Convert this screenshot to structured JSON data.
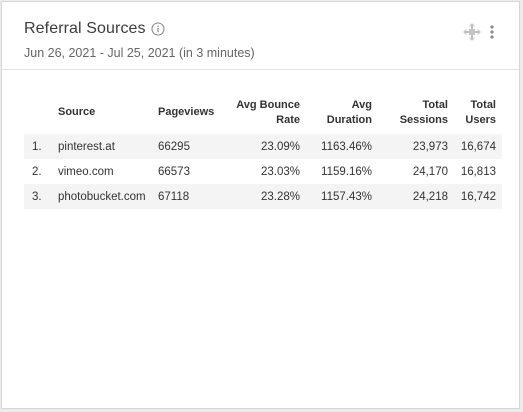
{
  "card": {
    "title": "Referral Sources",
    "subtitle": "Jun 26, 2021 - Jul 25, 2021 (in 3 minutes)",
    "icons": {
      "info": "info-icon",
      "move": "move-icon",
      "more": "more-vertical-icon"
    }
  },
  "table": {
    "columns": [
      {
        "label": ""
      },
      {
        "label": "Source"
      },
      {
        "label": "Pageviews"
      },
      {
        "label": "Avg Bounce Rate"
      },
      {
        "label": "Avg Duration"
      },
      {
        "label": "Total Sessions"
      },
      {
        "label": "Total Users"
      }
    ],
    "rows": [
      {
        "index": "1.",
        "source": "pinterest.at",
        "pageviews": "66295",
        "bounce_rate": "23.09%",
        "duration": "1163.46%",
        "sessions": "23,973",
        "users": "16,674"
      },
      {
        "index": "2.",
        "source": "vimeo.com",
        "pageviews": "66573",
        "bounce_rate": "23.03%",
        "duration": "1159.16%",
        "sessions": "24,170",
        "users": "16,813"
      },
      {
        "index": "3.",
        "source": "photobucket.com",
        "pageviews": "67118",
        "bounce_rate": "23.28%",
        "duration": "1157.43%",
        "sessions": "24,218",
        "users": "16,742"
      }
    ]
  }
}
